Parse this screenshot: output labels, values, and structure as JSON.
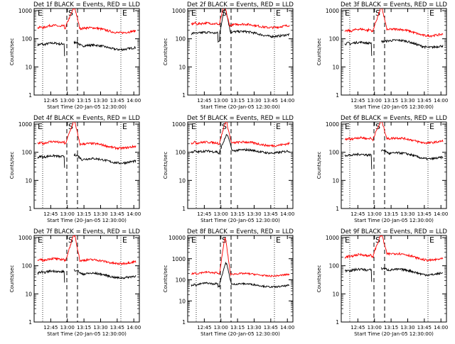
{
  "page": {
    "shared": {
      "ylabel": "Counts/sec",
      "xlabel": "Start Time (20-Jan-05 12:30:00)",
      "yticklabels": [
        "1",
        "10",
        "100",
        "1000"
      ],
      "xticklabels": [
        "12:45",
        "13:00",
        "13:15",
        "13:30",
        "13:45",
        "14:00"
      ],
      "marker_e_left": "E",
      "marker_s": "S",
      "marker_e_right": "E",
      "colors": {
        "events": "#000000",
        "lld": "#ff0000",
        "axes": "#000000"
      }
    }
  },
  "chart_data": [
    {
      "type": "line",
      "title": "Det 1f BLACK = Events, RED = LLD",
      "detector": "1f",
      "x_range_minutes": [
        0,
        100
      ],
      "ylim": [
        1,
        1000
      ],
      "yscale": "log",
      "series": [
        {
          "name": "Events",
          "color": "#000000",
          "baseline": 60,
          "pre_flare": 70,
          "peak": 75,
          "dip_at": 28,
          "dip_min": 25,
          "peak_at": 40,
          "decay_to": 55,
          "end": 45
        },
        {
          "name": "LLD",
          "color": "#ff0000",
          "baseline": 240,
          "pre_flare": 300,
          "peak": 1200,
          "dip_at": 28,
          "dip_min": 240,
          "peak_at": 38,
          "decay_to": 230,
          "end": 175
        }
      ]
    },
    {
      "type": "line",
      "title": "Det 2f BLACK = Events, RED = LLD",
      "detector": "2f",
      "x_range_minutes": [
        0,
        100
      ],
      "ylim": [
        1,
        1000
      ],
      "yscale": "log",
      "series": [
        {
          "name": "Events",
          "color": "#000000",
          "baseline": 150,
          "pre_flare": 170,
          "peak": 1200,
          "dip_at": 28,
          "dip_min": 80,
          "peak_at": 35,
          "decay_to": 170,
          "end": 130
        },
        {
          "name": "LLD",
          "color": "#ff0000",
          "baseline": 330,
          "pre_flare": 360,
          "peak": 1500,
          "dip_at": 28,
          "dip_min": 320,
          "peak_at": 34,
          "decay_to": 300,
          "end": 280
        }
      ]
    },
    {
      "type": "line",
      "title": "Det 3f BLACK = Events, RED = LLD",
      "detector": "3f",
      "x_range_minutes": [
        0,
        100
      ],
      "ylim": [
        1,
        1000
      ],
      "yscale": "log",
      "series": [
        {
          "name": "Events",
          "color": "#000000",
          "baseline": 65,
          "pre_flare": 75,
          "peak": 80,
          "dip_at": 28,
          "dip_min": 25,
          "peak_at": 40,
          "decay_to": 85,
          "end": 50
        },
        {
          "name": "LLD",
          "color": "#ff0000",
          "baseline": 180,
          "pre_flare": 220,
          "peak": 1200,
          "dip_at": 28,
          "dip_min": 180,
          "peak_at": 38,
          "decay_to": 210,
          "end": 130
        }
      ]
    },
    {
      "type": "line",
      "title": "Det 4f BLACK = Events, RED = LLD",
      "detector": "4f",
      "x_range_minutes": [
        0,
        100
      ],
      "ylim": [
        1,
        1000
      ],
      "yscale": "log",
      "series": [
        {
          "name": "Events",
          "color": "#000000",
          "baseline": 65,
          "pre_flare": 75,
          "peak": 80,
          "dip_at": 28,
          "dip_min": 30,
          "peak_at": 40,
          "decay_to": 55,
          "end": 45
        },
        {
          "name": "LLD",
          "color": "#ff0000",
          "baseline": 200,
          "pre_flare": 240,
          "peak": 1200,
          "dip_at": 28,
          "dip_min": 200,
          "peak_at": 38,
          "decay_to": 190,
          "end": 150
        }
      ]
    },
    {
      "type": "line",
      "title": "Det 5f BLACK = Events, RED = LLD",
      "detector": "5f",
      "x_range_minutes": [
        0,
        100
      ],
      "ylim": [
        1,
        1000
      ],
      "yscale": "log",
      "series": [
        {
          "name": "Events",
          "color": "#000000",
          "baseline": 100,
          "pre_flare": 110,
          "peak": 400,
          "dip_at": 28,
          "dip_min": 90,
          "peak_at": 37,
          "decay_to": 110,
          "end": 105
        },
        {
          "name": "LLD",
          "color": "#ff0000",
          "baseline": 210,
          "pre_flare": 230,
          "peak": 1200,
          "dip_at": 28,
          "dip_min": 200,
          "peak_at": 36,
          "decay_to": 210,
          "end": 190
        }
      ]
    },
    {
      "type": "line",
      "title": "Det 6f BLACK = Events, RED = LLD",
      "detector": "6f",
      "x_range_minutes": [
        0,
        100
      ],
      "ylim": [
        1,
        1000
      ],
      "yscale": "log",
      "series": [
        {
          "name": "Events",
          "color": "#000000",
          "baseline": 75,
          "pre_flare": 85,
          "peak": 120,
          "dip_at": 28,
          "dip_min": 25,
          "peak_at": 40,
          "decay_to": 90,
          "end": 60
        },
        {
          "name": "LLD",
          "color": "#ff0000",
          "baseline": 280,
          "pre_flare": 330,
          "peak": 1200,
          "dip_at": 28,
          "dip_min": 280,
          "peak_at": 38,
          "decay_to": 300,
          "end": 230
        }
      ]
    },
    {
      "type": "line",
      "title": "Det 7f BLACK = Events, RED = LLD",
      "detector": "7f",
      "x_range_minutes": [
        0,
        100
      ],
      "ylim": [
        1,
        1000
      ],
      "yscale": "log",
      "series": [
        {
          "name": "Events",
          "color": "#000000",
          "baseline": 55,
          "pre_flare": 65,
          "peak": 70,
          "dip_at": 28,
          "dip_min": 25,
          "peak_at": 40,
          "decay_to": 50,
          "end": 40
        },
        {
          "name": "LLD",
          "color": "#ff0000",
          "baseline": 150,
          "pre_flare": 180,
          "peak": 1200,
          "dip_at": 28,
          "dip_min": 150,
          "peak_at": 38,
          "decay_to": 150,
          "end": 130
        }
      ]
    },
    {
      "type": "line",
      "title": "Det 8f BLACK = Events, RED = LLD",
      "detector": "8f",
      "x_range_minutes": [
        0,
        100
      ],
      "ylim": [
        1,
        10000
      ],
      "yscale": "log",
      "series": [
        {
          "name": "Events",
          "color": "#000000",
          "baseline": 55,
          "pre_flare": 70,
          "peak": 600,
          "dip_at": 28,
          "dip_min": 50,
          "peak_at": 36,
          "decay_to": 60,
          "end": 50
        },
        {
          "name": "LLD",
          "color": "#ff0000",
          "baseline": 190,
          "pre_flare": 230,
          "peak": 9000,
          "dip_at": 28,
          "dip_min": 190,
          "peak_at": 35,
          "decay_to": 180,
          "end": 170
        }
      ]
    },
    {
      "type": "line",
      "title": "Det 9f BLACK = Events, RED = LLD",
      "detector": "9f",
      "x_range_minutes": [
        0,
        100
      ],
      "ylim": [
        1,
        1000
      ],
      "yscale": "log",
      "series": [
        {
          "name": "Events",
          "color": "#000000",
          "baseline": 65,
          "pre_flare": 75,
          "peak": 80,
          "dip_at": 28,
          "dip_min": 25,
          "peak_at": 40,
          "decay_to": 70,
          "end": 50
        },
        {
          "name": "LLD",
          "color": "#ff0000",
          "baseline": 200,
          "pre_flare": 250,
          "peak": 1200,
          "dip_at": 28,
          "dip_min": 200,
          "peak_at": 38,
          "decay_to": 260,
          "end": 160
        }
      ]
    }
  ]
}
